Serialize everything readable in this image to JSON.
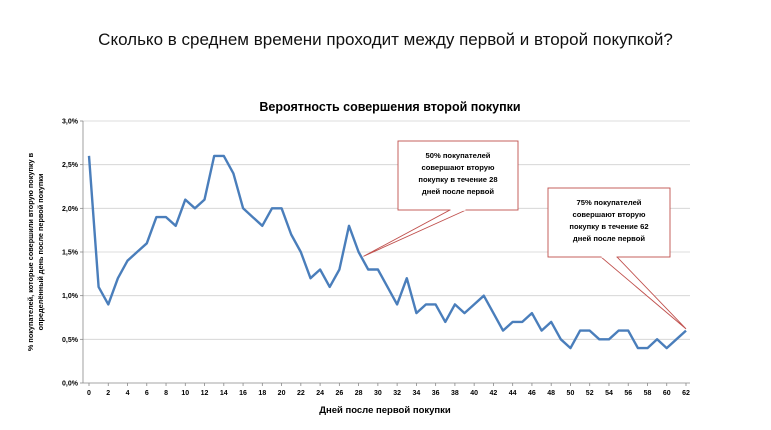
{
  "slide": {
    "title": "Сколько в среднем времени проходит между первой и второй покупкой?"
  },
  "chart_data": {
    "type": "line",
    "title": "Вероятность совершения второй покупки",
    "xlabel": "Дней после первой покупки",
    "ylabel_lines": [
      "% покупателей, которые совершили вторую покупку в",
      "определённый день после первой покупки"
    ],
    "xlim": [
      0,
      62
    ],
    "ylim": [
      0,
      3.0
    ],
    "y_ticks": [
      "0,0%",
      "0,5%",
      "1,0%",
      "1,5%",
      "2,0%",
      "2,5%",
      "3,0%"
    ],
    "x_ticks": [
      "0",
      "2",
      "4",
      "6",
      "8",
      "10",
      "12",
      "14",
      "16",
      "18",
      "20",
      "22",
      "24",
      "26",
      "28",
      "30",
      "32",
      "34",
      "36",
      "38",
      "40",
      "42",
      "44",
      "46",
      "48",
      "50",
      "52",
      "54",
      "56",
      "58",
      "60",
      "62"
    ],
    "grid": true,
    "line_color": "#4a7ebb",
    "series": [
      {
        "x": [
          0,
          1,
          2,
          3,
          4,
          5,
          6,
          7,
          8,
          9,
          10,
          11,
          12,
          13,
          14,
          15,
          16,
          17,
          18,
          19,
          20,
          21,
          22,
          23,
          24,
          25,
          26,
          27,
          28,
          29,
          30,
          31,
          32,
          33,
          34,
          35,
          36,
          37,
          38,
          39,
          40,
          41,
          42,
          43,
          44,
          45,
          46,
          47,
          48,
          49,
          50,
          51,
          52,
          53,
          54,
          55,
          56,
          57,
          58,
          59,
          60,
          61,
          62
        ],
        "values": [
          2.6,
          1.1,
          0.9,
          1.2,
          1.4,
          1.5,
          1.6,
          1.9,
          1.9,
          1.8,
          2.1,
          2.0,
          2.1,
          2.6,
          2.6,
          2.4,
          2.0,
          1.9,
          1.8,
          2.0,
          2.0,
          1.7,
          1.5,
          1.2,
          1.3,
          1.1,
          1.3,
          1.8,
          1.5,
          1.3,
          1.3,
          1.1,
          0.9,
          1.2,
          0.8,
          0.9,
          0.9,
          0.7,
          0.9,
          0.8,
          0.9,
          1.0,
          0.8,
          0.6,
          0.7,
          0.7,
          0.8,
          0.6,
          0.7,
          0.5,
          0.4,
          0.6,
          0.6,
          0.5,
          0.5,
          0.6,
          0.6,
          0.4,
          0.4,
          0.5,
          0.4,
          0.5,
          0.6
        ]
      }
    ],
    "annotations": [
      {
        "lines": [
          "50% покупателей",
          "совершают вторую",
          "покупку в течение  28",
          "дней после первой"
        ],
        "target": [
          28.5,
          1.45
        ]
      },
      {
        "lines": [
          "75% покупателей",
          "совершают вторую",
          "покупку в течение  62",
          "дней после первой"
        ],
        "target": [
          62,
          0.62
        ]
      }
    ],
    "callout_border": "#c0504d"
  }
}
